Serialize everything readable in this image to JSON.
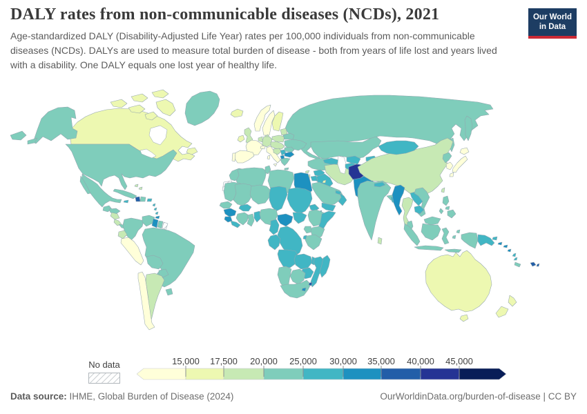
{
  "header": {
    "title": "DALY rates from non-communicable diseases (NCDs), 2021",
    "subtitle": "Age-standardized DALY (Disability-Adjusted Life Year) rates per 100,000 individuals from non-communicable diseases (NCDs). DALYs are used to measure total burden of disease - both from years of life lost and years lived with a disability. One DALY equals one lost year of healthy life.",
    "logo": {
      "line1": "Our World",
      "line2": "in Data",
      "bg_color": "#1d3d63",
      "accent_color": "#cc2a36"
    }
  },
  "legend": {
    "no_data_label": "No data",
    "tick_labels": [
      "15,000",
      "17,500",
      "20,000",
      "25,000",
      "30,000",
      "35,000",
      "40,000",
      "45,000"
    ],
    "bin_colors": [
      "#ffffd9",
      "#edf8b1",
      "#c7e9b4",
      "#7fcdbb",
      "#41b6c4",
      "#1d91c0",
      "#225ea8",
      "#253494",
      "#081d58"
    ]
  },
  "footer": {
    "source_label": "Data source:",
    "source_text": " IHME, Global Burden of Disease (2024)",
    "right_text": "OurWorldinData.org/burden-of-disease | CC BY"
  },
  "chart_data": {
    "type": "choropleth_map",
    "title": "DALY rates from non-communicable diseases (NCDs), 2021",
    "unit": "Age-standardized DALYs per 100,000 individuals",
    "year": "2021",
    "source": "IHME, Global Burden of Disease (2024)",
    "legend_position": "bottom",
    "bins": [
      {
        "label": "< 15,000",
        "color": "#ffffd9"
      },
      {
        "label": "15,000 - 17,500",
        "color": "#edf8b1"
      },
      {
        "label": "17,500 - 20,000",
        "color": "#c7e9b4"
      },
      {
        "label": "20,000 - 25,000",
        "color": "#7fcdbb"
      },
      {
        "label": "25,000 - 30,000",
        "color": "#41b6c4"
      },
      {
        "label": "30,000 - 35,000",
        "color": "#1d91c0"
      },
      {
        "label": "35,000 - 40,000",
        "color": "#225ea8"
      },
      {
        "label": "40,000 - 45,000",
        "color": "#253494"
      },
      {
        "label": "> 45,000",
        "color": "#081d58"
      },
      {
        "label": "No data",
        "color": "hatch"
      }
    ],
    "regions": {
      "canada": 1,
      "usa": 3,
      "greenland": 3,
      "mexico": 3,
      "guatemala": 3,
      "honduras": 3,
      "nicaragua": 2,
      "costa-rica": 2,
      "panama": 3,
      "cuba": 3,
      "jamaica": 4,
      "haiti": 6,
      "dominican-republic": 3,
      "puerto-rico": 4,
      "bahamas": 2,
      "lesser-antilles": 4,
      "trinidad": 5,
      "colombia": 3,
      "venezuela": 3,
      "guyana": 5,
      "suriname": 3,
      "french-guiana": "nd",
      "ecuador": 2,
      "peru": 0,
      "brazil": 3,
      "bolivia": 3,
      "paraguay": 3,
      "uruguay": 3,
      "chile": 0,
      "argentina": 2,
      "iceland": 1,
      "norway": 0,
      "sweden": 0,
      "finland": 1,
      "denmark": 2,
      "uk": 2,
      "ireland": 1,
      "france": 0,
      "benelux": 2,
      "germany": 2,
      "switzerland": 0,
      "italy": 0,
      "spain": 0,
      "portugal": 0,
      "poland": 2,
      "czechia-austria-hungary": 2,
      "baltics": 2,
      "belarus": 3,
      "ukraine": 3,
      "romania": 3,
      "balkans-west": 2,
      "serbia": 4,
      "bulgaria": 5,
      "albania-macedonia": 5,
      "greece": 3,
      "cyprus": 2,
      "russia": 3,
      "kamchatka": 3,
      "sakhalin": 3,
      "russia-west-fragment": 3,
      "kazakhstan": 3,
      "uzbekistan": 4,
      "turkmenistan": 4,
      "kyrgyzstan": 4,
      "tajikistan": 4,
      "caucasus": 4,
      "turkey": 3,
      "syria": 4,
      "iraq": 4,
      "jordan": 4,
      "israel": 1,
      "kuwait": 1,
      "saudi-arabia": 3,
      "yemen": 4,
      "oman": 4,
      "uae": 4,
      "iran": 2,
      "afghanistan": 7,
      "pakistan": 5,
      "india": 3,
      "nepal": 4,
      "bangladesh": 4,
      "sri-lanka": 2,
      "china": 2,
      "mongolia": 4,
      "north-korea": 3,
      "south-korea": 0,
      "japan": 0,
      "taiwan": 2,
      "myanmar": 5,
      "thailand": 2,
      "laos": 4,
      "vietnam": 3,
      "cambodia": 4,
      "malaysia": 3,
      "malaysia-borneo": 3,
      "indonesia": 3,
      "papua-new-guinea": 4,
      "philippines": 3,
      "morocco": 3,
      "western-sahara": "nd",
      "algeria": 3,
      "tunisia": 3,
      "libya": 3,
      "egypt": 5,
      "mauritania": 3,
      "mali": 3,
      "niger": 3,
      "chad": 4,
      "sudan": 4,
      "senegal": 3,
      "guinea": 5,
      "sierra-leone": 5,
      "liberia": 4,
      "ivory-coast": 3,
      "ghana": 3,
      "togo-benin": 4,
      "burkina-faso": 4,
      "nigeria": 3,
      "cameroon": 4,
      "central-african-republic": 5,
      "south-sudan": 4,
      "eritrea": 4,
      "djibouti": 4,
      "ethiopia": 3,
      "somalia": 4,
      "kenya": 3,
      "uganda": 3,
      "tanzania": 3,
      "rwanda-burundi": 4,
      "drc": 4,
      "congo-gabon": 4,
      "angola": 4,
      "zambia": 4,
      "malawi": 4,
      "mozambique": 4,
      "zimbabwe": 4,
      "botswana": 3,
      "namibia": 3,
      "south-africa": 3,
      "lesotho": 5,
      "eswatini": 6,
      "madagascar": 4,
      "australia": 1,
      "tasmania": 1,
      "new-zealand": 1,
      "fiji": 6,
      "solomon-islands": 5,
      "vanuatu": 4,
      "new-caledonia": 3
    }
  }
}
